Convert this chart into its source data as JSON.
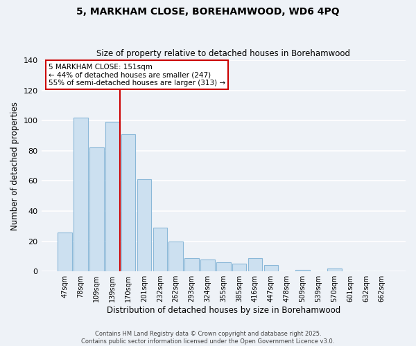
{
  "title": "5, MARKHAM CLOSE, BOREHAMWOOD, WD6 4PQ",
  "subtitle": "Size of property relative to detached houses in Borehamwood",
  "xlabel": "Distribution of detached houses by size in Borehamwood",
  "ylabel": "Number of detached properties",
  "bar_color": "#cce0f0",
  "bar_edge_color": "#8ab8d8",
  "background_color": "#eef2f7",
  "grid_color": "#ffffff",
  "categories": [
    "47sqm",
    "78sqm",
    "109sqm",
    "139sqm",
    "170sqm",
    "201sqm",
    "232sqm",
    "262sqm",
    "293sqm",
    "324sqm",
    "355sqm",
    "385sqm",
    "416sqm",
    "447sqm",
    "478sqm",
    "509sqm",
    "539sqm",
    "570sqm",
    "601sqm",
    "632sqm",
    "662sqm"
  ],
  "values": [
    26,
    102,
    82,
    99,
    91,
    61,
    29,
    20,
    9,
    8,
    6,
    5,
    9,
    4,
    0,
    1,
    0,
    2,
    0,
    0,
    0
  ],
  "ylim": [
    0,
    140
  ],
  "yticks": [
    0,
    20,
    40,
    60,
    80,
    100,
    120,
    140
  ],
  "vline_color": "#cc0000",
  "vline_index": 3,
  "annotation_title": "5 MARKHAM CLOSE: 151sqm",
  "annotation_line1": "← 44% of detached houses are smaller (247)",
  "annotation_line2": "55% of semi-detached houses are larger (313) →",
  "annotation_box_color": "#ffffff",
  "annotation_box_edge": "#cc0000",
  "footer_line1": "Contains HM Land Registry data © Crown copyright and database right 2025.",
  "footer_line2": "Contains public sector information licensed under the Open Government Licence v3.0."
}
